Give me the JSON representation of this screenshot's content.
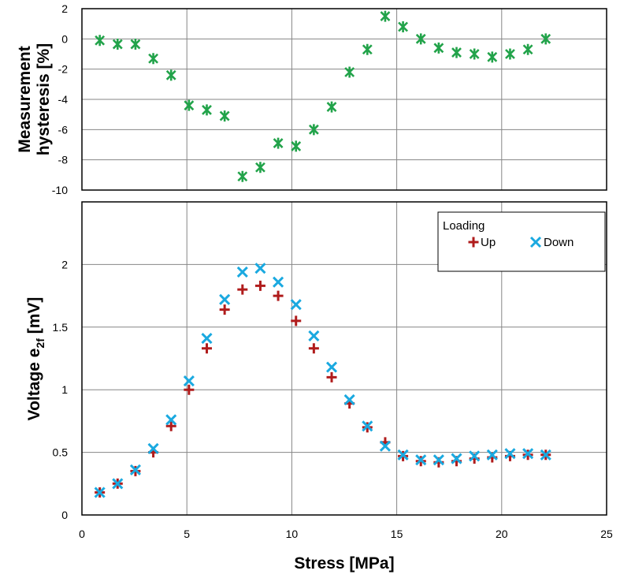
{
  "chart_data": [
    {
      "type": "scatter",
      "name": "hysteresis",
      "xlabel": "",
      "ylabel": "Measurement hysteresis [%]",
      "ylabel_lines": [
        "Measurement",
        "hysteresis [%]"
      ],
      "xlim": [
        0,
        25
      ],
      "ylim": [
        -10,
        2
      ],
      "y_ticks": [
        2,
        0,
        -2,
        -4,
        -6,
        -8,
        -10
      ],
      "y_tick_labels": [
        "2",
        "0",
        "-2",
        "-4",
        "-6",
        "-8",
        "-10"
      ],
      "grid": true,
      "series": [
        {
          "name": "Hysteresis",
          "marker": "star",
          "color": "#22a34a",
          "x": [
            0.85,
            1.7,
            2.55,
            3.4,
            4.25,
            5.1,
            5.95,
            6.8,
            7.65,
            8.5,
            9.35,
            10.2,
            11.05,
            11.9,
            12.75,
            13.6,
            14.45,
            15.3,
            16.15,
            17.0,
            17.85,
            18.7,
            19.55,
            20.4,
            21.25,
            22.1
          ],
          "y": [
            -0.1,
            -0.35,
            -0.35,
            -1.3,
            -2.4,
            -4.4,
            -4.7,
            -5.1,
            -9.1,
            -8.5,
            -6.9,
            -7.1,
            -6.0,
            -4.5,
            -2.2,
            -0.7,
            1.5,
            0.8,
            0.0,
            -0.6,
            -0.9,
            -1.0,
            -1.2,
            -1.0,
            -0.7,
            0.0
          ]
        }
      ]
    },
    {
      "type": "scatter",
      "name": "voltage",
      "xlabel": "Stress [MPa]",
      "ylabel": "Voltage e2f [mV]",
      "ylabel_main": "Voltage e",
      "ylabel_sub": "2f",
      "ylabel_tail": " [mV]",
      "xlim": [
        0,
        25
      ],
      "ylim": [
        0,
        2.5
      ],
      "x_ticks": [
        0,
        5,
        10,
        15,
        20,
        25
      ],
      "x_tick_labels": [
        "0",
        "5",
        "10",
        "15",
        "20",
        "25"
      ],
      "y_ticks": [
        0,
        0.5,
        1,
        1.5,
        2
      ],
      "y_tick_labels": [
        "0",
        "0.5",
        "1",
        "1.5",
        "2"
      ],
      "grid": true,
      "legend": {
        "title": "Loading",
        "position": "top-right",
        "entries": [
          "Up",
          "Down"
        ]
      },
      "series": [
        {
          "name": "Up",
          "marker": "plus",
          "color": "#b01c1c",
          "x": [
            0.85,
            1.7,
            2.55,
            3.4,
            4.25,
            5.1,
            5.95,
            6.8,
            7.65,
            8.5,
            9.35,
            10.2,
            11.05,
            11.9,
            12.75,
            13.6,
            14.45,
            15.3,
            16.15,
            17.0,
            17.85,
            18.7,
            19.55,
            20.4,
            21.25,
            22.1
          ],
          "y": [
            0.18,
            0.25,
            0.35,
            0.5,
            0.71,
            1.0,
            1.33,
            1.64,
            1.8,
            1.83,
            1.75,
            1.55,
            1.33,
            1.1,
            0.89,
            0.7,
            0.58,
            0.47,
            0.43,
            0.42,
            0.43,
            0.45,
            0.46,
            0.47,
            0.48,
            0.48
          ]
        },
        {
          "name": "Down",
          "marker": "cross",
          "color": "#1aa9e0",
          "x": [
            0.85,
            1.7,
            2.55,
            3.4,
            4.25,
            5.1,
            5.95,
            6.8,
            7.65,
            8.5,
            9.35,
            10.2,
            11.05,
            11.9,
            12.75,
            13.6,
            14.45,
            15.3,
            16.15,
            17.0,
            17.85,
            18.7,
            19.55,
            20.4,
            21.25,
            22.1
          ],
          "y": [
            0.18,
            0.25,
            0.36,
            0.53,
            0.76,
            1.07,
            1.41,
            1.72,
            1.94,
            1.97,
            1.86,
            1.68,
            1.43,
            1.18,
            0.92,
            0.71,
            0.55,
            0.48,
            0.44,
            0.44,
            0.45,
            0.47,
            0.48,
            0.49,
            0.49,
            0.48
          ]
        }
      ]
    }
  ]
}
